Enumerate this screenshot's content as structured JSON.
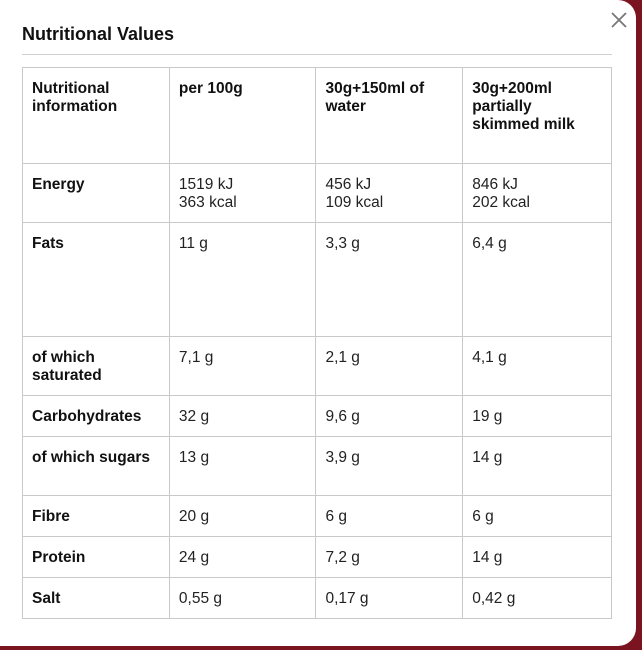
{
  "modal": {
    "title": "Nutritional Values",
    "close_icon": "close-icon"
  },
  "table": {
    "headers": [
      "Nutritional information",
      "per 100g",
      "30g+150ml of water",
      "30g+200ml partially skimmed milk"
    ],
    "rows": [
      {
        "label": "Energy",
        "cells": [
          [
            "1519 kJ",
            "363 kcal"
          ],
          [
            "456 kJ",
            "109 kcal"
          ],
          [
            "846 kJ",
            "202 kcal"
          ]
        ]
      },
      {
        "label": "Fats",
        "cells": [
          [
            "11 g"
          ],
          [
            "3,3 g"
          ],
          [
            "6,4 g"
          ]
        ]
      },
      {
        "label": "of which saturated",
        "cells": [
          [
            "7,1 g"
          ],
          [
            "2,1 g"
          ],
          [
            "4,1 g"
          ]
        ]
      },
      {
        "label": "Carbohydrates",
        "cells": [
          [
            "32 g"
          ],
          [
            "9,6 g"
          ],
          [
            "19 g"
          ]
        ]
      },
      {
        "label": "of which sugars",
        "cells": [
          [
            "13 g"
          ],
          [
            "3,9 g"
          ],
          [
            "14 g"
          ]
        ]
      },
      {
        "label": "Fibre",
        "cells": [
          [
            "20 g"
          ],
          [
            "6 g"
          ],
          [
            "6 g"
          ]
        ]
      },
      {
        "label": "Protein",
        "cells": [
          [
            "24 g"
          ],
          [
            "7,2 g"
          ],
          [
            "14 g"
          ]
        ]
      },
      {
        "label": "Salt",
        "cells": [
          [
            "0,55 g"
          ],
          [
            "0,17 g"
          ],
          [
            "0,42 g"
          ]
        ]
      }
    ]
  }
}
